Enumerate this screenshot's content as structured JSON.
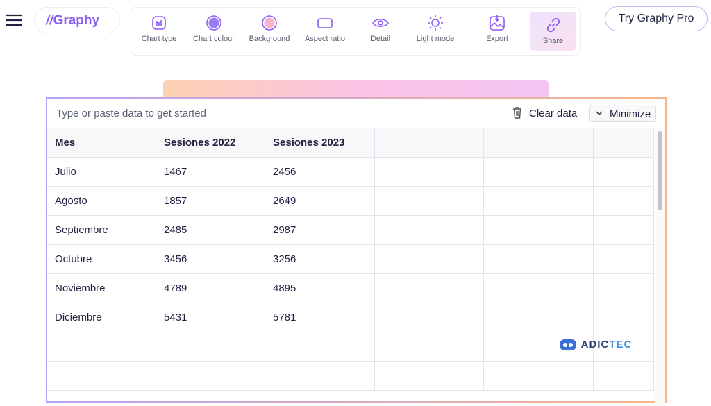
{
  "header": {
    "logo": "Graphy",
    "toolbar": [
      "Chart type",
      "Chart colour",
      "Background",
      "Aspect ratio",
      "Detail",
      "Light mode",
      "Export",
      "Share"
    ],
    "pro_button": "Try Graphy Pro"
  },
  "panel": {
    "placeholder": "Type or paste data to get started",
    "clear": "Clear data",
    "minimize": "Minimize"
  },
  "table": {
    "columns": [
      "Mes",
      "Sesiones 2022",
      "Sesiones 2023"
    ],
    "rows": [
      [
        "Julio",
        1467,
        2456
      ],
      [
        "Agosto",
        1857,
        2649
      ],
      [
        "Septiembre",
        2485,
        2987
      ],
      [
        "Octubre",
        3456,
        3256
      ],
      [
        "Noviembre",
        4789,
        4895
      ],
      [
        "Diciembre",
        5431,
        5781
      ]
    ]
  },
  "watermark": {
    "left": "ADIC",
    "right": "TEC"
  }
}
